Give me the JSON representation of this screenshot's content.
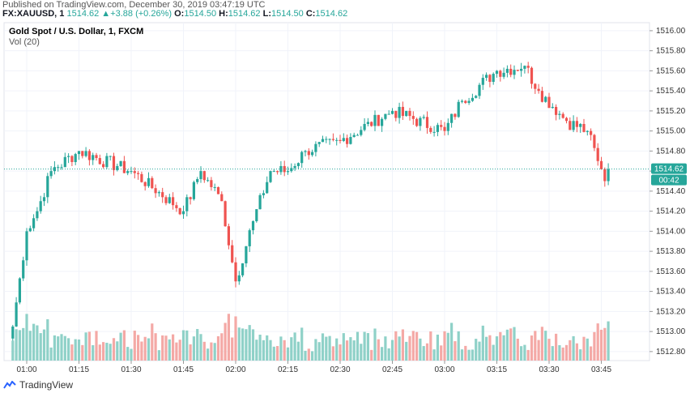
{
  "header": {
    "published": "Published on TradingView.com, December 30, 2019 03:47:19 UTC",
    "symbol": "FX:XAUUSD, 1",
    "last": "1514.62",
    "change": "+3.88 (+0.26%)",
    "open_label": "O:",
    "open": "1514.50",
    "high_label": "H:",
    "high": "1514.62",
    "low_label": "L:",
    "low": "1514.50",
    "close_label": "C:",
    "close": "1514.62"
  },
  "chart_title": "Gold Spot / U.S. Dollar, 1, FXCM",
  "volume_label": "Vol (20)",
  "price_tag": "1514.62",
  "countdown_tag": "00:42",
  "footer": {
    "brand": "TradingView"
  },
  "colors": {
    "up": "#26a69a",
    "down": "#ef5350",
    "vol_up": "#8fd1c8",
    "vol_down": "#f4a9a6",
    "last_line": "#26a69a"
  },
  "chart_data": {
    "type": "candlestick",
    "title": "Gold Spot / U.S. Dollar, 1, FXCM",
    "y_ticks": [
      1512.8,
      1513.0,
      1513.2,
      1513.4,
      1513.6,
      1513.8,
      1514.0,
      1514.2,
      1514.4,
      1514.6,
      1514.8,
      1515.0,
      1515.2,
      1515.4,
      1515.6,
      1515.8,
      1516.0
    ],
    "y_tick_labels": [
      "1512.80",
      "1513.00",
      "1513.20",
      "1513.40",
      "1513.60",
      "1513.80",
      "1514.00",
      "1514.20",
      "1514.40",
      "1514.60",
      "1514.80",
      "1515.00",
      "1515.20",
      "1515.40",
      "1515.60",
      "1515.80",
      "1516.00"
    ],
    "ylim": [
      1512.71,
      1516.08
    ],
    "x_ticks": [
      "01:00",
      "01:15",
      "01:30",
      "01:45",
      "02:00",
      "02:15",
      "02:30",
      "02:45",
      "03:00",
      "03:15",
      "03:30",
      "03:45"
    ],
    "candle_spacing_minutes": 1,
    "first_candle": "00:56",
    "last_candle": "03:47",
    "last_price": 1514.62,
    "key_points": [
      {
        "t": "00:56",
        "close": 1513.05
      },
      {
        "t": "01:00",
        "close": 1514.0
      },
      {
        "t": "01:03",
        "close": 1514.2
      },
      {
        "t": "01:07",
        "close": 1514.6
      },
      {
        "t": "01:15",
        "close": 1514.8
      },
      {
        "t": "01:30",
        "close": 1514.6
      },
      {
        "t": "01:45",
        "close": 1514.2
      },
      {
        "t": "01:50",
        "close": 1514.6
      },
      {
        "t": "01:56",
        "close": 1514.3
      },
      {
        "t": "02:00",
        "close": 1513.5
      },
      {
        "t": "02:05",
        "close": 1514.1
      },
      {
        "t": "02:10",
        "close": 1514.6
      },
      {
        "t": "02:15",
        "close": 1514.6
      },
      {
        "t": "02:20",
        "close": 1514.8
      },
      {
        "t": "02:30",
        "close": 1514.9
      },
      {
        "t": "02:45",
        "close": 1515.2
      },
      {
        "t": "03:00",
        "close": 1515.0
      },
      {
        "t": "03:05",
        "close": 1515.3
      },
      {
        "t": "03:15",
        "close": 1515.6
      },
      {
        "t": "03:23",
        "close": 1515.65
      },
      {
        "t": "03:27",
        "close": 1515.4
      },
      {
        "t": "03:35",
        "close": 1515.1
      },
      {
        "t": "03:41",
        "close": 1515.0
      },
      {
        "t": "03:44",
        "close": 1514.7
      },
      {
        "t": "03:46",
        "close": 1514.5
      },
      {
        "t": "03:47",
        "close": 1514.62
      }
    ]
  }
}
